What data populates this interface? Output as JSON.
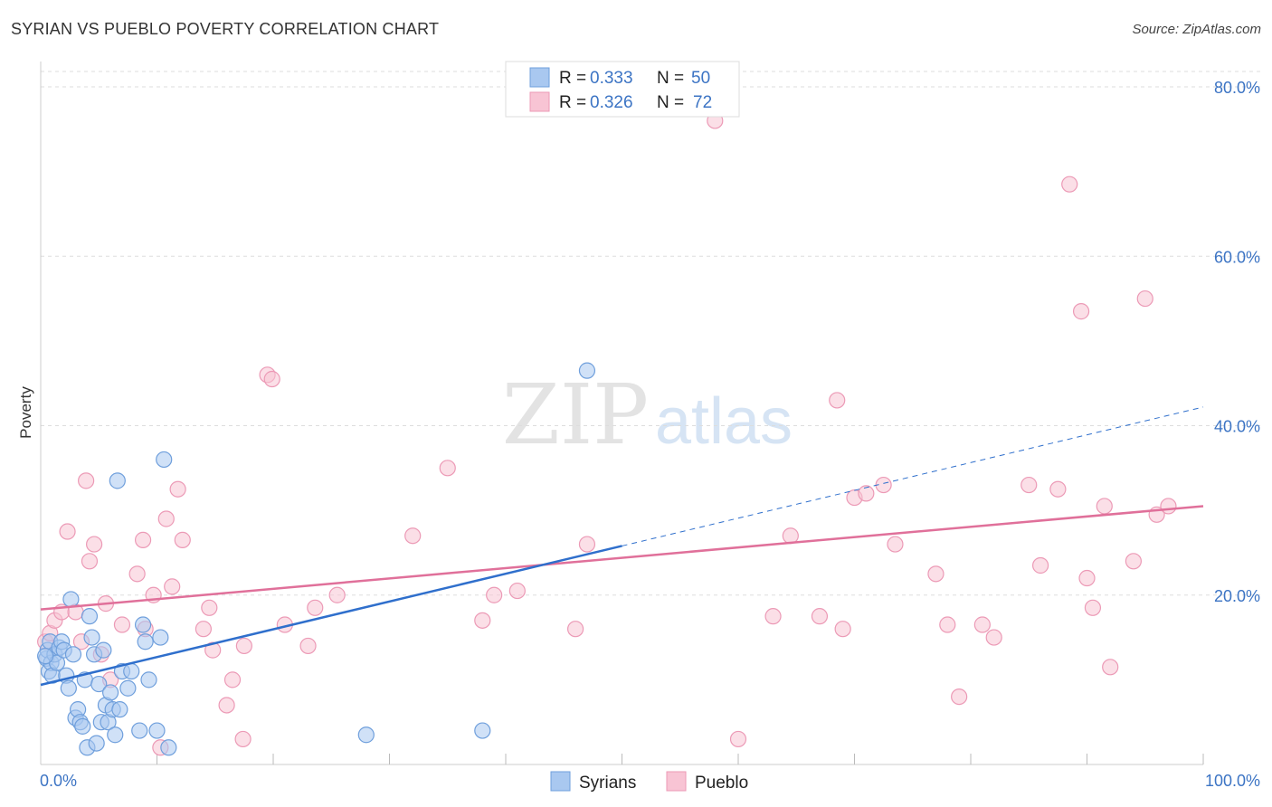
{
  "header": {
    "title": "SYRIAN VS PUEBLO POVERTY CORRELATION CHART",
    "source": "Source: ZipAtlas.com"
  },
  "watermark": {
    "zip": "ZIP",
    "atlas": "atlas"
  },
  "colors": {
    "syrians_fill": "#a9c8f0",
    "syrians_stroke": "#6f9fdc",
    "syrians_line": "#2f6fcc",
    "pueblo_fill": "#f8c4d4",
    "pueblo_stroke": "#ec9ab6",
    "pueblo_line": "#e0709a",
    "tick": "#3c74c4",
    "grid": "#dddddd"
  },
  "chart_data": {
    "type": "scatter",
    "title": "SYRIAN VS PUEBLO POVERTY CORRELATION CHART",
    "xlabel": "",
    "ylabel": "Poverty",
    "xlim": [
      0,
      100
    ],
    "ylim": [
      0,
      80
    ],
    "x_tick_labels": [
      "0.0%",
      "100.0%"
    ],
    "y_ticks": [
      20,
      40,
      60,
      80
    ],
    "y_tick_labels": [
      "20.0%",
      "40.0%",
      "60.0%",
      "80.0%"
    ],
    "legend": [
      {
        "name": "Syrians",
        "r_label": "R = ",
        "r": "0.333",
        "n_label": "N = ",
        "n": "50"
      },
      {
        "name": "Pueblo",
        "r_label": "R = ",
        "r": "0.326",
        "n_label": "N = ",
        "n": "72"
      }
    ],
    "series": [
      {
        "name": "Syrians",
        "trend": {
          "x0": 0,
          "y0": 9.4,
          "x1": 50,
          "y1": 25.8,
          "x_dash_end": 100,
          "y_dash_end": 42.2
        },
        "points": [
          [
            0.5,
            12.5
          ],
          [
            0.6,
            13.5
          ],
          [
            0.7,
            11.0
          ],
          [
            0.8,
            14.5
          ],
          [
            0.9,
            12.0
          ],
          [
            1.0,
            10.5
          ],
          [
            1.2,
            13.0
          ],
          [
            1.4,
            12.0
          ],
          [
            1.6,
            13.8
          ],
          [
            1.8,
            14.5
          ],
          [
            2.0,
            13.5
          ],
          [
            2.2,
            10.5
          ],
          [
            2.4,
            9.0
          ],
          [
            2.6,
            19.5
          ],
          [
            2.8,
            13.0
          ],
          [
            3.0,
            5.5
          ],
          [
            3.2,
            6.5
          ],
          [
            3.4,
            5.0
          ],
          [
            3.6,
            4.5
          ],
          [
            3.8,
            10.0
          ],
          [
            4.0,
            2.0
          ],
          [
            4.2,
            17.5
          ],
          [
            4.4,
            15.0
          ],
          [
            4.6,
            13.0
          ],
          [
            4.8,
            2.5
          ],
          [
            5.0,
            9.5
          ],
          [
            5.2,
            5.0
          ],
          [
            5.4,
            13.5
          ],
          [
            5.6,
            7.0
          ],
          [
            5.8,
            5.0
          ],
          [
            6.0,
            8.5
          ],
          [
            6.2,
            6.5
          ],
          [
            6.4,
            3.5
          ],
          [
            6.6,
            33.5
          ],
          [
            6.8,
            6.5
          ],
          [
            7.0,
            11.0
          ],
          [
            7.5,
            9.0
          ],
          [
            7.8,
            11.0
          ],
          [
            8.5,
            4.0
          ],
          [
            8.8,
            16.5
          ],
          [
            9.0,
            14.5
          ],
          [
            9.3,
            10.0
          ],
          [
            10.0,
            4.0
          ],
          [
            10.3,
            15.0
          ],
          [
            10.6,
            36.0
          ],
          [
            11.0,
            2.0
          ],
          [
            28.0,
            3.5
          ],
          [
            38.0,
            4.0
          ],
          [
            47.0,
            46.5
          ],
          [
            0.4,
            12.8
          ]
        ]
      },
      {
        "name": "Pueblo",
        "trend": {
          "x0": 0,
          "y0": 18.3,
          "x1": 100,
          "y1": 30.5
        },
        "points": [
          [
            0.4,
            14.5
          ],
          [
            0.8,
            15.5
          ],
          [
            1.2,
            17.0
          ],
          [
            1.8,
            18.0
          ],
          [
            2.3,
            27.5
          ],
          [
            3.0,
            18.0
          ],
          [
            3.5,
            14.5
          ],
          [
            3.9,
            33.5
          ],
          [
            4.2,
            24.0
          ],
          [
            4.6,
            26.0
          ],
          [
            5.2,
            13.0
          ],
          [
            5.6,
            19.0
          ],
          [
            6.0,
            10.0
          ],
          [
            7.0,
            16.5
          ],
          [
            8.3,
            22.5
          ],
          [
            8.8,
            26.5
          ],
          [
            9.0,
            16.0
          ],
          [
            9.7,
            20.0
          ],
          [
            10.3,
            2.0
          ],
          [
            10.8,
            29.0
          ],
          [
            11.3,
            21.0
          ],
          [
            11.8,
            32.5
          ],
          [
            12.2,
            26.5
          ],
          [
            14.0,
            16.0
          ],
          [
            14.5,
            18.5
          ],
          [
            14.8,
            13.5
          ],
          [
            16.0,
            7.0
          ],
          [
            16.5,
            10.0
          ],
          [
            17.4,
            3.0
          ],
          [
            17.5,
            14.0
          ],
          [
            19.5,
            46.0
          ],
          [
            19.9,
            45.5
          ],
          [
            21.0,
            16.5
          ],
          [
            23.0,
            14.0
          ],
          [
            23.6,
            18.5
          ],
          [
            25.5,
            20.0
          ],
          [
            32.0,
            27.0
          ],
          [
            35.0,
            35.0
          ],
          [
            38.0,
            17.0
          ],
          [
            39.0,
            20.0
          ],
          [
            41.0,
            20.5
          ],
          [
            46.0,
            16.0
          ],
          [
            47.0,
            26.0
          ],
          [
            58.0,
            76.0
          ],
          [
            60.0,
            3.0
          ],
          [
            63.0,
            17.5
          ],
          [
            64.5,
            27.0
          ],
          [
            67.0,
            17.5
          ],
          [
            68.5,
            43.0
          ],
          [
            69.0,
            16.0
          ],
          [
            70.0,
            31.5
          ],
          [
            71.0,
            32.0
          ],
          [
            72.5,
            33.0
          ],
          [
            73.5,
            26.0
          ],
          [
            77.0,
            22.5
          ],
          [
            78.0,
            16.5
          ],
          [
            79.0,
            8.0
          ],
          [
            81.0,
            16.5
          ],
          [
            82.0,
            15.0
          ],
          [
            85.0,
            33.0
          ],
          [
            86.0,
            23.5
          ],
          [
            87.5,
            32.5
          ],
          [
            88.5,
            68.5
          ],
          [
            89.5,
            53.5
          ],
          [
            90.0,
            22.0
          ],
          [
            90.5,
            18.5
          ],
          [
            91.5,
            30.5
          ],
          [
            92.0,
            11.5
          ],
          [
            94.0,
            24.0
          ],
          [
            95.0,
            55.0
          ],
          [
            96.0,
            29.5
          ],
          [
            97.0,
            30.5
          ]
        ]
      }
    ]
  }
}
